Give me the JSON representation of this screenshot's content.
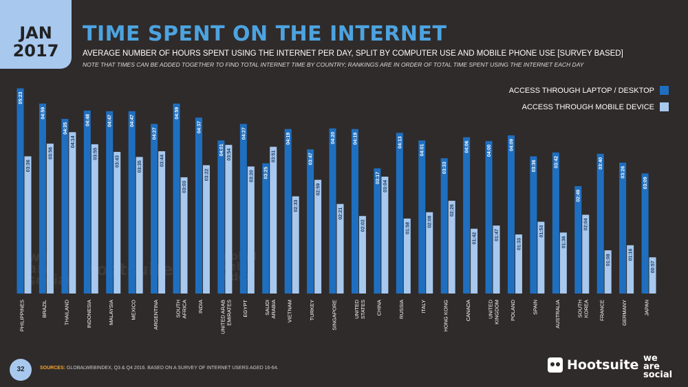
{
  "header": {
    "month": "JAN",
    "year": "2017",
    "title": "TIME SPENT ON THE INTERNET",
    "subtitle": "AVERAGE NUMBER OF HOURS SPENT USING THE INTERNET PER DAY, SPLIT BY COMPUTER USE AND MOBILE PHONE USE [SURVEY BASED]",
    "note": "NOTE THAT TIMES CAN BE ADDED TOGETHER TO FIND TOTAL INTERNET TIME BY COUNTRY; RANKINGS ARE IN ORDER OF TOTAL TIME SPENT USING THE INTERNET EACH DAY"
  },
  "colors": {
    "desktop": "#1f6fc0",
    "mobile": "#a8c8ee",
    "background": "#2f2b2a",
    "title": "#4da3e0",
    "sources_label": "#f2a531"
  },
  "chart_data": {
    "type": "bar",
    "categories": [
      [
        "PHILIPPINES"
      ],
      [
        "BRAZIL"
      ],
      [
        "THAILAND"
      ],
      [
        "INDONESIA"
      ],
      [
        "MALAYSIA"
      ],
      [
        "MEXICO"
      ],
      [
        "ARGENTINA"
      ],
      [
        "SOUTH",
        "AFRICA"
      ],
      [
        "INDIA"
      ],
      [
        "UNITED ARAB",
        "EMIRATES"
      ],
      [
        "EGYPT"
      ],
      [
        "SAUDI",
        "ARABIA"
      ],
      [
        "VIETNAM"
      ],
      [
        "TURKEY"
      ],
      [
        "SINGAPORE"
      ],
      [
        "UNITED",
        "STATES"
      ],
      [
        "CHINA"
      ],
      [
        "RUSSIA"
      ],
      [
        "ITALY"
      ],
      [
        "HONG KONG"
      ],
      [
        "CANADA"
      ],
      [
        "UNITED",
        "KINGDOM"
      ],
      [
        "POLAND"
      ],
      [
        "SPAIN"
      ],
      [
        "AUSTRALIA"
      ],
      [
        "SOUTH",
        "KOREA"
      ],
      [
        "FRANCE"
      ],
      [
        "GERMANY"
      ],
      [
        "JAPAN"
      ]
    ],
    "series": [
      {
        "name": "ACCESS THROUGH LAPTOP / DESKTOP",
        "values": [
          "05:23",
          "04:59",
          "04:35",
          "04:48",
          "04:47",
          "04:47",
          "04:27",
          "04:59",
          "04:37",
          "04:01",
          "04:27",
          "03:25",
          "04:19",
          "03:47",
          "04:20",
          "04:19",
          "03:17",
          "04:13",
          "04:01",
          "03:33",
          "04:06",
          "04:00",
          "04:09",
          "03:36",
          "03:42",
          "02:49",
          "03:40",
          "03:26",
          "03:09"
        ]
      },
      {
        "name": "ACCESS THROUGH MOBILE DEVICE",
        "values": [
          "03:36",
          "03:56",
          "04:14",
          "03:55",
          "03:43",
          "03:35",
          "03:44",
          "03:03",
          "03:22",
          "03:54",
          "03:20",
          "03:51",
          "02:33",
          "02:59",
          "02:21",
          "02:02",
          "03:04",
          "01:58",
          "02:08",
          "02:26",
          "01:42",
          "01:47",
          "01:33",
          "01:53",
          "01:36",
          "02:04",
          "01:08",
          "01:16",
          "00:57"
        ]
      }
    ],
    "units": "hours:minutes per day",
    "legend_position": "top-right"
  },
  "watermarks": {
    "we": "we",
    "are": "are",
    "social": "social",
    "hootsuite": "Hootsuite",
    "global": "global",
    "web": "web",
    "index": "index"
  },
  "footer": {
    "page_number": "32",
    "sources_label": "SOURCES:",
    "sources_text": "GLOBALWEBINDEX, Q3 & Q4 2016. BASED ON A SURVEY OF INTERNET USERS AGED 16-64.",
    "hootsuite": "Hootsuite",
    "we": "we",
    "are": "are",
    "social": "social"
  }
}
